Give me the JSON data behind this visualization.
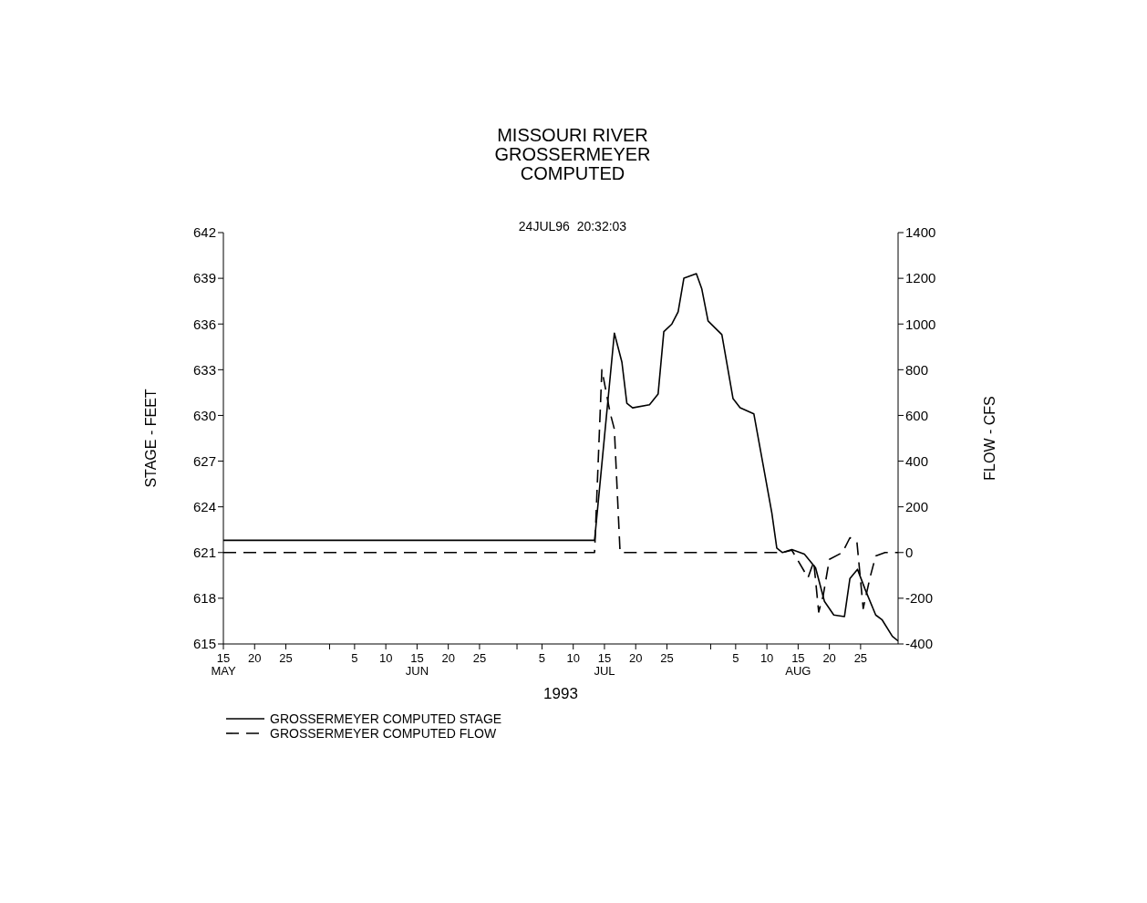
{
  "chart_data": {
    "type": "line",
    "title": "MISSOURI RIVER\nGROSSERMEYER\nCOMPUTED",
    "subtitle": "24JUL96  20:32:03",
    "xlabel": "1993",
    "ylabel": "STAGE - FEET",
    "y2label": "FLOW - CFS",
    "xlim": [
      "1993-05-15",
      "1993-08-31"
    ],
    "xticks": [
      {
        "value": "1993-05-15",
        "label": "15\nMAY"
      },
      {
        "value": "1993-05-20",
        "label": "20"
      },
      {
        "value": "1993-05-25",
        "label": "25"
      },
      {
        "value": "1993-06-01",
        "label": null
      },
      {
        "value": "1993-06-05",
        "label": "5"
      },
      {
        "value": "1993-06-10",
        "label": "10"
      },
      {
        "value": "1993-06-15",
        "label": "15\nJUN"
      },
      {
        "value": "1993-06-20",
        "label": "20"
      },
      {
        "value": "1993-06-25",
        "label": "25"
      },
      {
        "value": "1993-07-01",
        "label": null
      },
      {
        "value": "1993-07-05",
        "label": "5"
      },
      {
        "value": "1993-07-10",
        "label": "10"
      },
      {
        "value": "1993-07-15",
        "label": "15\nJUL"
      },
      {
        "value": "1993-07-20",
        "label": "20"
      },
      {
        "value": "1993-07-25",
        "label": "25"
      },
      {
        "value": "1993-08-01",
        "label": null
      },
      {
        "value": "1993-08-05",
        "label": "5"
      },
      {
        "value": "1993-08-10",
        "label": "10"
      },
      {
        "value": "1993-08-15",
        "label": "15\nAUG"
      },
      {
        "value": "1993-08-20",
        "label": "20"
      },
      {
        "value": "1993-08-25",
        "label": "25"
      }
    ],
    "ylim": [
      615,
      642
    ],
    "yticks": [
      615,
      618,
      621,
      624,
      627,
      630,
      633,
      636,
      639,
      642
    ],
    "y2lim": [
      -400,
      1400
    ],
    "y2ticks": [
      -400,
      -200,
      0,
      200,
      400,
      600,
      800,
      1000,
      1200,
      1400
    ],
    "legend": "bottom",
    "marker": "none",
    "series": [
      {
        "name": "GROSSERMEYER COMPUTED STAGE",
        "color": "#000000",
        "line_style": "solid",
        "x": [
          "1993-05-15",
          "1993-07-13T10:00",
          "1993-07-16T14:00",
          "1993-07-17T19:00",
          "1993-07-18T14:00",
          "1993-07-19T12:00",
          "1993-07-22T05:00",
          "1993-07-23T14:00",
          "1993-07-24T12:00",
          "1993-07-25T19:00",
          "1993-07-26T19:00",
          "1993-07-27T17:00",
          "1993-07-29T17:00",
          "1993-07-30T14:00",
          "1993-07-31T14:00",
          "1993-08-02T19:00",
          "1993-08-04T14:00",
          "1993-08-05T17:00",
          "1993-08-07T22:00",
          "1993-08-10T19:00",
          "1993-08-11T14:00",
          "1993-08-12T12:00",
          "1993-08-14",
          "1993-08-16",
          "1993-08-17T19:00",
          "1993-08-19T05:00",
          "1993-08-20T17:00",
          "1993-08-22T10:00",
          "1993-08-23T07:00",
          "1993-08-24T12:00",
          "1993-08-25T17:00",
          "1993-08-27T10:00",
          "1993-08-28T10:00",
          "1993-08-30T02:00",
          "1993-08-31"
        ],
        "values": [
          621.8,
          621.8,
          635.4,
          633.5,
          630.8,
          630.5,
          630.7,
          631.4,
          635.5,
          636.0,
          636.8,
          639.0,
          639.3,
          638.3,
          636.2,
          635.3,
          631.1,
          630.5,
          630.1,
          623.6,
          621.3,
          621.0,
          621.2,
          620.9,
          620.0,
          617.8,
          616.9,
          616.8,
          619.3,
          619.9,
          618.6,
          616.9,
          616.6,
          615.5,
          615.2
        ]
      },
      {
        "name": "GROSSERMEYER COMPUTED FLOW",
        "color": "#000000",
        "line_style": "dashed",
        "axis": "y2",
        "x": [
          "1993-05-15",
          "1993-07-13T10:00",
          "1993-07-14T14:00",
          "1993-07-15T22:00",
          "1993-07-16T14:00",
          "1993-07-17T12:00",
          "1993-08-12T12:00",
          "1993-08-14",
          "1993-08-16T14:00",
          "1993-08-17T12:00",
          "1993-08-18T07:00",
          "1993-08-19",
          "1993-08-20",
          "1993-08-22T02:00",
          "1993-08-23T07:00",
          "1993-08-24T10:00",
          "1993-08-25T10:00",
          "1993-08-26T12:00",
          "1993-08-27T10:00",
          "1993-08-28T22:00",
          "1993-08-31"
        ],
        "values": [
          0,
          0,
          800,
          610,
          540,
          0,
          0,
          10,
          -110,
          -40,
          -260,
          -190,
          -30,
          0,
          65,
          45,
          -245,
          -110,
          -15,
          0,
          0
        ]
      }
    ]
  }
}
